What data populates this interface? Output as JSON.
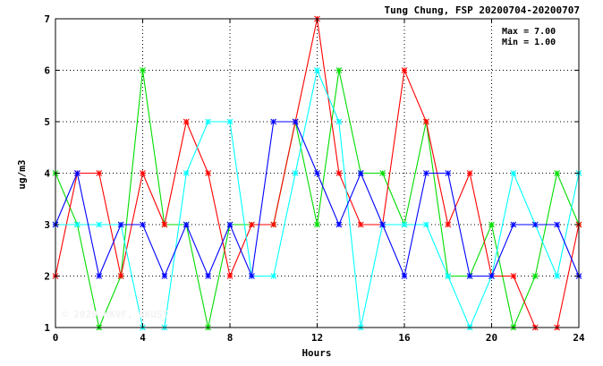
{
  "chart_data": {
    "type": "line",
    "title": "Tung Chung, FSP 20200704-20200707",
    "xlabel": "Hours",
    "ylabel": "ug/m3",
    "x": [
      0,
      1,
      2,
      3,
      4,
      5,
      6,
      7,
      8,
      9,
      10,
      11,
      12,
      13,
      14,
      15,
      16,
      17,
      18,
      19,
      20,
      21,
      22,
      23,
      24
    ],
    "xlim": [
      0,
      24
    ],
    "ylim": [
      1,
      7
    ],
    "x_ticks": [
      "0",
      "4",
      "8",
      "12",
      "16",
      "20",
      "24"
    ],
    "y_ticks": [
      "1",
      "2",
      "3",
      "4",
      "5",
      "6",
      "7"
    ],
    "grid": true,
    "stats": {
      "max": "Max = 7.00",
      "min": "Min = 1.00"
    },
    "watermark": "© 2020 HKVF, HKUST",
    "series": [
      {
        "color": "#00dd00",
        "values": [
          4,
          3,
          1,
          2,
          6,
          3,
          3,
          1,
          3,
          3,
          3,
          5,
          3,
          6,
          4,
          4,
          3,
          5,
          2,
          2,
          3,
          1,
          2,
          4,
          3
        ]
      },
      {
        "color": "#ff0000",
        "values": [
          2,
          4,
          4,
          2,
          4,
          3,
          5,
          4,
          2,
          3,
          3,
          5,
          7,
          4,
          3,
          3,
          6,
          5,
          3,
          4,
          2,
          2,
          1,
          1,
          3
        ]
      },
      {
        "color": "#00ffff",
        "values": [
          3,
          3,
          3,
          3,
          1,
          1,
          4,
          5,
          5,
          2,
          2,
          4,
          6,
          5,
          1,
          3,
          3,
          3,
          2,
          1,
          2,
          4,
          3,
          2,
          4
        ]
      },
      {
        "color": "#0000ff",
        "values": [
          3,
          4,
          2,
          3,
          3,
          2,
          3,
          2,
          3,
          2,
          5,
          5,
          4,
          3,
          4,
          3,
          2,
          4,
          4,
          2,
          2,
          3,
          3,
          3,
          2
        ]
      }
    ]
  }
}
